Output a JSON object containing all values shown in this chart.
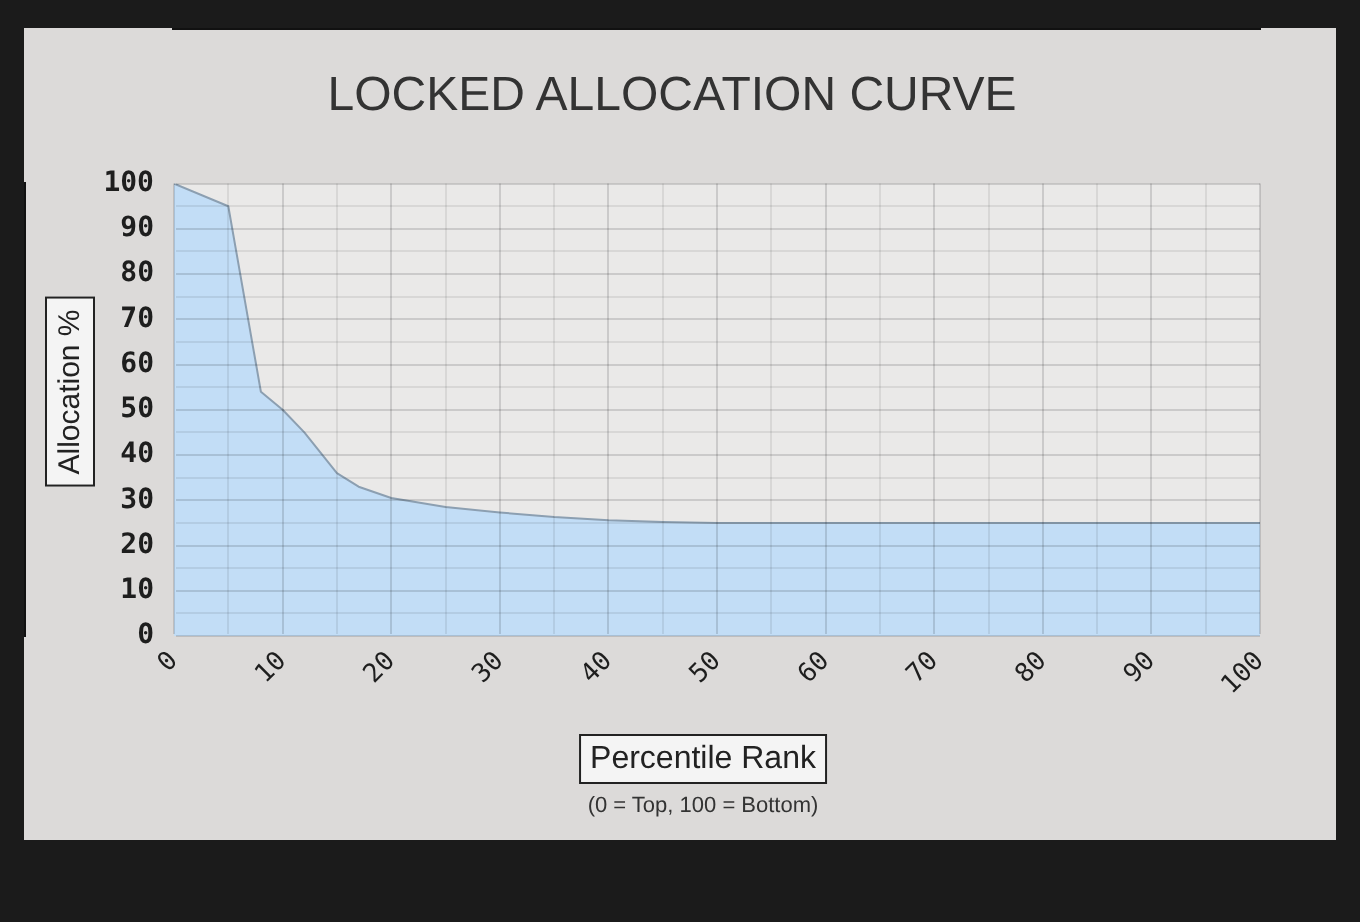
{
  "chart_data": {
    "type": "area",
    "title": "LOCKED ALLOCATION CURVE",
    "xlabel": "Percentile Rank",
    "ylabel": "Allocation %",
    "annotations": [
      "(0 = Top, 100 = Bottom)"
    ],
    "x": [
      0,
      5,
      8,
      10,
      12,
      15,
      17,
      20,
      25,
      30,
      35,
      40,
      45,
      50,
      60,
      70,
      80,
      90,
      100
    ],
    "series": [
      {
        "color": "#c2ddf6",
        "values": [
          100,
          95,
          54,
          50,
          45,
          36,
          33,
          30.5,
          28.5,
          27.3,
          26.3,
          25.6,
          25.2,
          25,
          25,
          25,
          25,
          25,
          25
        ]
      }
    ],
    "xlim": [
      0,
      100
    ],
    "ylim": [
      0,
      100
    ],
    "xticks": [
      0,
      {
        "value": 5,
        "label": null
      },
      10,
      {
        "value": 15,
        "label": null
      },
      20,
      {
        "value": 25,
        "label": null
      },
      30,
      {
        "value": 35,
        "label": null
      },
      40,
      {
        "value": 45,
        "label": null
      },
      50,
      {
        "value": 55,
        "label": null
      },
      60,
      {
        "value": 65,
        "label": null
      },
      70,
      {
        "value": 75,
        "label": null
      },
      80,
      {
        "value": 85,
        "label": null
      },
      90,
      {
        "value": 95,
        "label": null
      },
      100
    ],
    "yticks": [
      0,
      {
        "value": 5,
        "label": null
      },
      10,
      {
        "value": 15,
        "label": null
      },
      20,
      {
        "value": 25,
        "label": null
      },
      30,
      {
        "value": 35,
        "label": null
      },
      40,
      {
        "value": 45,
        "label": null
      },
      50,
      {
        "value": 55,
        "label": null
      },
      60,
      {
        "value": 65,
        "label": null
      },
      70,
      {
        "value": 75,
        "label": null
      },
      80,
      {
        "value": 85,
        "label": null
      },
      90,
      {
        "value": 95,
        "label": null
      },
      100
    ],
    "grid": true
  }
}
